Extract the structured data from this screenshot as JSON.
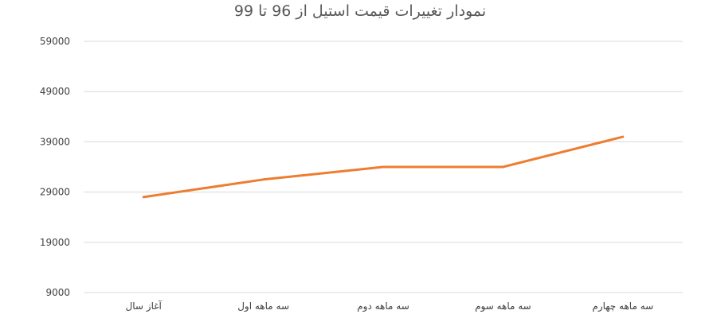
{
  "chart_data": {
    "type": "line",
    "title": "نمودار تغییرات قیمت استیل از 96 تا 99",
    "xlabel": "",
    "ylabel": "",
    "categories": [
      "آغاز سال",
      "سه ماهه اول",
      "سه ماهه دوم",
      "سه ماهه سوم",
      "سه ماهه چهارم"
    ],
    "series": [
      {
        "name": "",
        "values": [
          28000,
          31500,
          34000,
          34000,
          40000
        ],
        "color": "#ED7D31"
      }
    ],
    "ylim": [
      9000,
      59000
    ],
    "yticks": [
      9000,
      19000,
      29000,
      39000,
      49000,
      59000
    ],
    "grid": true,
    "legend": "none"
  }
}
